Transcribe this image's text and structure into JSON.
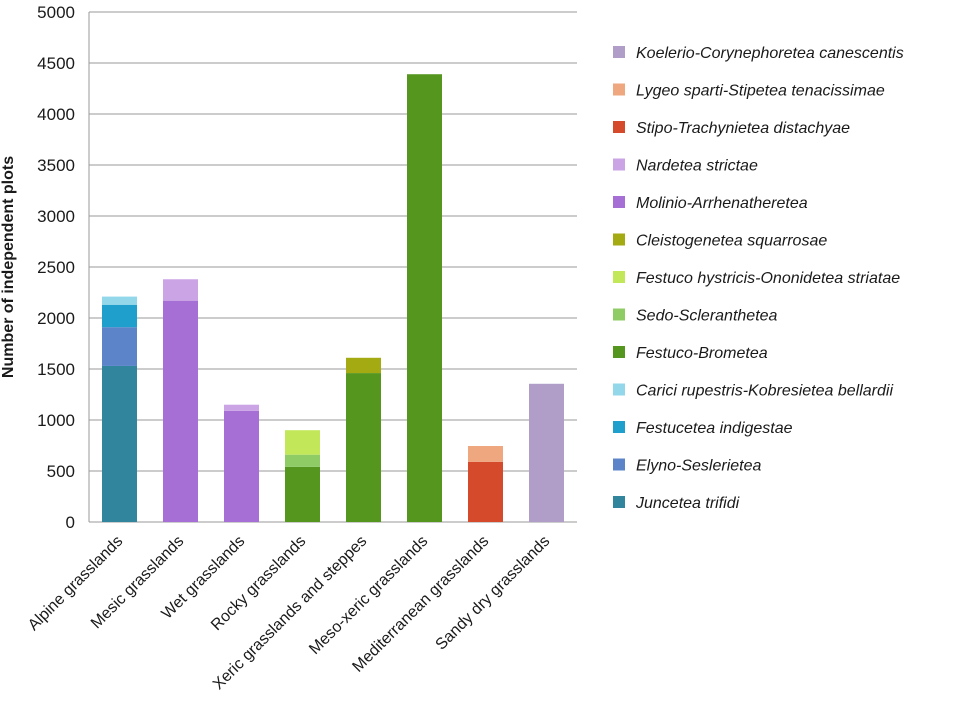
{
  "chart_data": {
    "type": "bar",
    "stacked": true,
    "title": "",
    "xlabel": "",
    "ylabel": "Number of independent plots",
    "ylim": [
      0,
      5000
    ],
    "yticks": [
      0,
      500,
      1000,
      1500,
      2000,
      2500,
      3000,
      3500,
      4000,
      4500,
      5000
    ],
    "grid": "horizontal",
    "legend_position": "right",
    "categories": [
      "Alpine grasslands",
      "Mesic grasslands",
      "Wet grasslands",
      "Rocky grasslands",
      "Xeric grasslands and steppes",
      "Meso-xeric grasslands",
      "Mediterranean grasslands",
      "Sandy dry grasslands"
    ],
    "series": [
      {
        "name": "Juncetea trifidi",
        "color": "#31859c",
        "values": [
          1530,
          0,
          0,
          0,
          0,
          0,
          0,
          0
        ]
      },
      {
        "name": "Elyno-Seslerietea",
        "color": "#5b84c9",
        "values": [
          380,
          0,
          0,
          0,
          0,
          0,
          0,
          0
        ]
      },
      {
        "name": "Festucetea indigestae",
        "color": "#1fa0cc",
        "values": [
          220,
          0,
          0,
          0,
          0,
          0,
          0,
          0
        ]
      },
      {
        "name": "Carici rupestris-Kobresietea bellardii",
        "color": "#93d8ea",
        "values": [
          80,
          0,
          0,
          0,
          0,
          0,
          0,
          0
        ]
      },
      {
        "name": "Festuco-Brometea",
        "color": "#55961e",
        "values": [
          0,
          0,
          0,
          540,
          1460,
          4390,
          0,
          0
        ]
      },
      {
        "name": "Sedo-Scleranthetea",
        "color": "#8fcc66",
        "values": [
          0,
          0,
          0,
          120,
          0,
          0,
          0,
          0
        ]
      },
      {
        "name": "Festuco hystricis-Ononidetea striatae",
        "color": "#c2e85a",
        "values": [
          0,
          0,
          0,
          240,
          0,
          0,
          0,
          0
        ]
      },
      {
        "name": "Cleistogenetea squarrosae",
        "color": "#a3aa12",
        "values": [
          0,
          0,
          0,
          0,
          150,
          0,
          0,
          0
        ]
      },
      {
        "name": "Molinio-Arrhenatheretea",
        "color": "#a56fd6",
        "values": [
          0,
          2170,
          1090,
          0,
          0,
          0,
          0,
          0
        ]
      },
      {
        "name": "Nardetea strictae",
        "color": "#cba4e6",
        "values": [
          0,
          210,
          60,
          0,
          0,
          0,
          0,
          0
        ]
      },
      {
        "name": "Stipo-Trachynietea distachyae",
        "color": "#d64a2c",
        "values": [
          0,
          0,
          0,
          0,
          0,
          0,
          590,
          0
        ]
      },
      {
        "name": "Lygeo sparti-Stipetea tenacissimae",
        "color": "#eea77f",
        "values": [
          0,
          0,
          0,
          0,
          0,
          0,
          155,
          0
        ]
      },
      {
        "name": "Koelerio-Corynephoretea canescentis",
        "color": "#b09dc8",
        "values": [
          0,
          0,
          0,
          0,
          0,
          0,
          0,
          1355
        ]
      }
    ],
    "legend_order": [
      "Koelerio-Corynephoretea canescentis",
      "Lygeo sparti-Stipetea tenacissimae",
      "Stipo-Trachynietea distachyae",
      "Nardetea strictae",
      "Molinio-Arrhenatheretea",
      "Cleistogenetea squarrosae",
      "Festuco hystricis-Ononidetea striatae",
      "Sedo-Scleranthetea",
      "Festuco-Brometea",
      "Carici rupestris-Kobresietea bellardii",
      "Festucetea indigestae",
      "Elyno-Seslerietea",
      "Juncetea trifidi"
    ]
  }
}
